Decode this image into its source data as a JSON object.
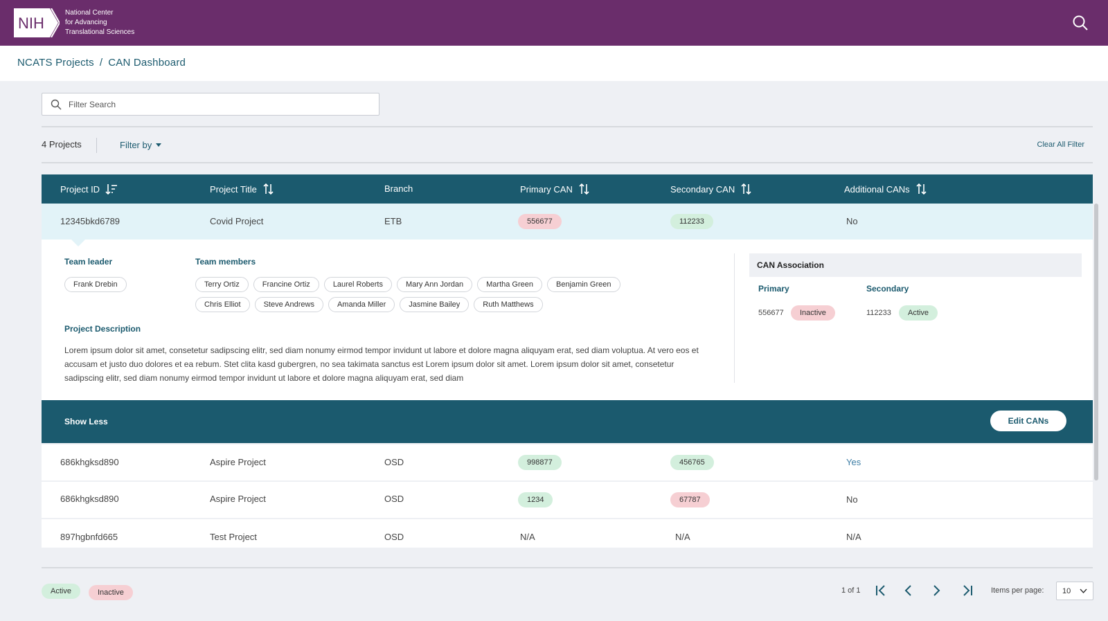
{
  "header": {
    "logo_text": "NIH",
    "org_lines": [
      "National Center",
      "for Advancing",
      "Translational Sciences"
    ]
  },
  "breadcrumb": {
    "root": "NCATS Projects",
    "separator": "/",
    "current": "CAN Dashboard"
  },
  "search": {
    "placeholder": "Filter Search"
  },
  "toolbar": {
    "count": "4 Projects",
    "filter_by": "Filter by",
    "clear_all": "Clear All Filter"
  },
  "table": {
    "columns": [
      "Project ID",
      "Project Title",
      "Branch",
      "Primary CAN",
      "Secondary CAN",
      "Additional CANs"
    ],
    "rows": [
      {
        "id": "12345bkd6789",
        "title": "Covid Project",
        "branch": "ETB",
        "primary": "556677",
        "primary_status": "red",
        "secondary": "112233",
        "secondary_status": "green",
        "additional": "No"
      },
      {
        "id": "686khgksd890",
        "title": "Aspire Project",
        "branch": "OSD",
        "primary": "998877",
        "primary_status": "green",
        "secondary": "456765",
        "secondary_status": "green",
        "additional": "Yes"
      },
      {
        "id": "686khgksd890",
        "title": "Aspire Project",
        "branch": "OSD",
        "primary": "1234",
        "primary_status": "green",
        "secondary": "67787",
        "secondary_status": "red",
        "additional": "No"
      },
      {
        "id": "897hgbnfd665",
        "title": "Test Project",
        "branch": "OSD",
        "primary": "N/A",
        "secondary": "N/A",
        "additional": "N/A"
      }
    ]
  },
  "detail": {
    "team_leader_label": "Team leader",
    "team_leader": "Frank Drebin",
    "team_members_label": "Team members",
    "team_members": [
      "Terry Ortiz",
      "Francine Ortiz",
      "Laurel Roberts",
      "Mary Ann Jordan",
      "Martha Green",
      "Benjamin Green",
      "Chris Elliot",
      "Steve Andrews",
      "Amanda Miller",
      "Jasmine Bailey",
      "Ruth Matthews"
    ],
    "description_label": "Project Description",
    "description": "Lorem ipsum dolor sit amet, consetetur sadipscing elitr, sed diam nonumy eirmod tempor invidunt ut labore et dolore magna aliquyam erat, sed diam voluptua. At vero eos et accusam et justo duo dolores et ea rebum. Stet clita kasd gubergren, no sea takimata sanctus est Lorem ipsum dolor sit amet. Lorem ipsum dolor sit amet, consetetur sadipscing elitr, sed diam nonumy eirmod tempor invidunt ut labore et dolore magna aliquyam erat, sed diam",
    "can_association": {
      "title": "CAN Association",
      "primary_label": "Primary",
      "primary_value": "556677",
      "primary_status": "Inactive",
      "secondary_label": "Secondary",
      "secondary_value": "112233",
      "secondary_status": "Active"
    }
  },
  "actions": {
    "show_less": "Show Less",
    "edit_cans": "Edit CANs"
  },
  "legend": {
    "active": "Active",
    "inactive": "Inactive"
  },
  "pagination": {
    "page_info": "1 of 1",
    "items_per_page_label": "Items per page:",
    "items_per_page": "10"
  },
  "colors": {
    "header": "#6a2d6b",
    "primary": "#1b5a6e",
    "active_pill": "#d3efdd",
    "inactive_pill": "#f6cfd3"
  }
}
